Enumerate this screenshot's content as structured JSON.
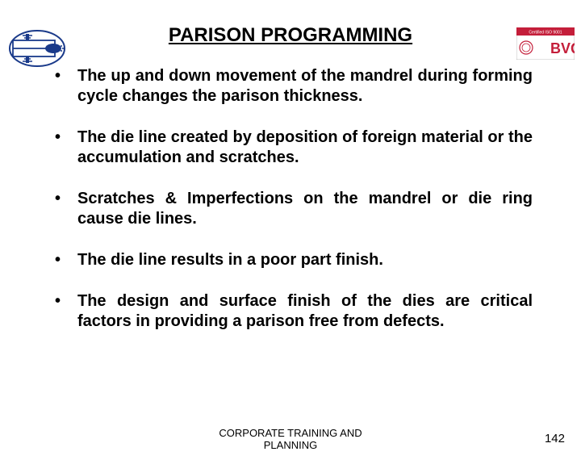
{
  "title": "PARISON PROGRAMMING",
  "bullets": [
    "The up and down movement of the mandrel during forming cycle changes the parison thickness.",
    "The die line created by deposition of foreign material  or the accumulation and scratches.",
    "Scratches & Imperfections on the mandrel or die ring cause die lines.",
    "The die line results in a poor part finish.",
    "The design and surface finish of the dies are critical factors in providing a parison free from defects."
  ],
  "footer": "CORPORATE TRAINING AND PLANNING",
  "page_number": "142",
  "logo_left": {
    "stroke": "#1a3a8a",
    "fill_bg": "#ffffff"
  },
  "logo_right": {
    "bar_color": "#c41e3a",
    "bg": "#ffffff",
    "text_color": "#ffffff",
    "main_text": "BVQI",
    "top_text": "Certified ISO 9001"
  },
  "colors": {
    "text": "#000000",
    "background": "#ffffff"
  },
  "typography": {
    "title_fontsize": 24,
    "bullet_fontsize": 20,
    "footer_fontsize": 13,
    "page_fontsize": 15,
    "font_family": "Arial",
    "title_weight": "bold",
    "bullet_weight": "bold"
  }
}
